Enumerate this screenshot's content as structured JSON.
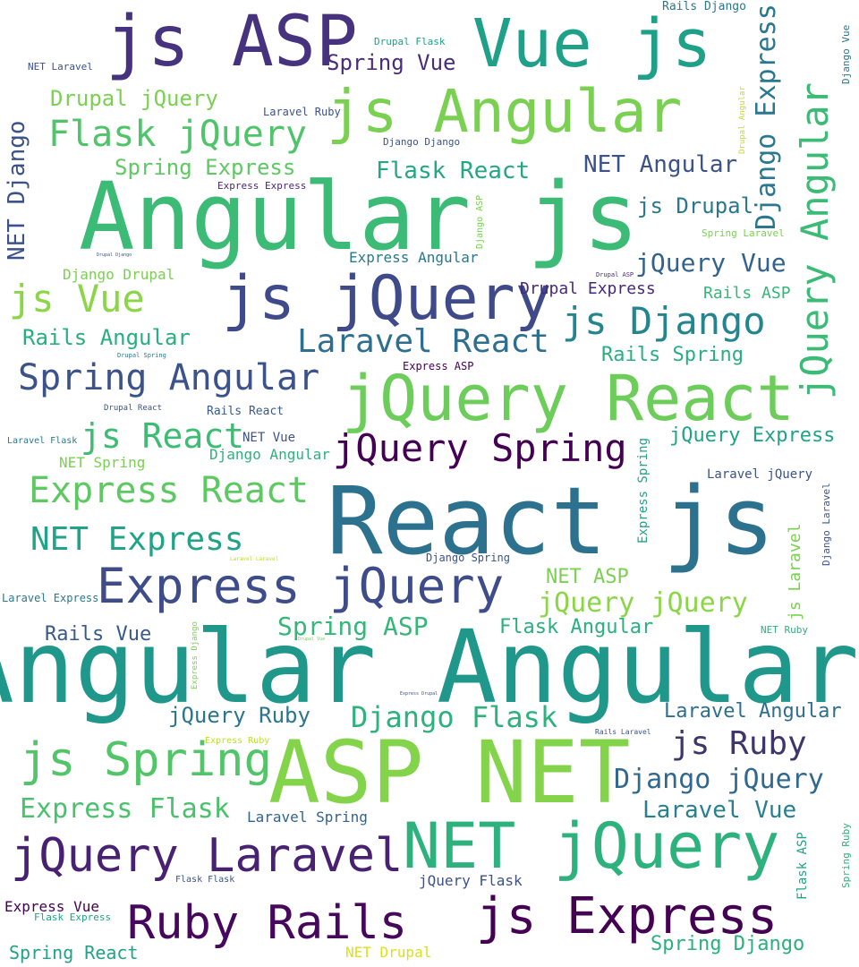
{
  "words": [
    {
      "text": "js ASP",
      "color": "#46327e",
      "size": "h",
      "vertical": false
    },
    {
      "text": "Vue js",
      "color": "#1fa088",
      "size": "h",
      "vertical": false
    },
    {
      "text": "js Angular",
      "color": "#7ad151",
      "size": "h",
      "vertical": false
    },
    {
      "text": "Angular js",
      "color": "#3bbb75",
      "size": "h",
      "vertical": false
    },
    {
      "text": "js jQuery",
      "color": "#3e4a89",
      "size": "h",
      "vertical": false
    },
    {
      "text": "jQuery React",
      "color": "#6ccd5a",
      "size": "h",
      "vertical": false
    },
    {
      "text": "React js",
      "color": "#2c728e",
      "size": "h",
      "vertical": false
    },
    {
      "text": "Express jQuery",
      "color": "#3e4c8a",
      "size": "h",
      "vertical": false
    },
    {
      "text": "Angular Angular",
      "color": "#1f988b",
      "size": "h",
      "vertical": false
    },
    {
      "text": "ASP NET",
      "color": "#84d44b",
      "size": "h",
      "vertical": false
    },
    {
      "text": "NET jQuery",
      "color": "#2db27d",
      "size": "h",
      "vertical": false
    },
    {
      "text": "jQuery Laravel",
      "color": "#482173",
      "size": "h",
      "vertical": false
    },
    {
      "text": "Ruby Rails",
      "color": "#46085c",
      "size": "h",
      "vertical": false
    },
    {
      "text": "js Express",
      "color": "#440154",
      "size": "h",
      "vertical": false
    },
    {
      "text": "js Spring",
      "color": "#52c569",
      "size": "h",
      "vertical": false
    },
    {
      "text": "jQuery Spring",
      "color": "#440154",
      "size": "h",
      "vertical": false
    },
    {
      "text": "jQuery Angular",
      "color": "#3bbb75",
      "size": "h",
      "vertical": true
    },
    {
      "text": "Spring Vue",
      "color": "#472d7b",
      "size": "m",
      "vertical": false
    },
    {
      "text": "Drupal jQuery",
      "color": "#7ad151",
      "size": "m",
      "vertical": false
    },
    {
      "text": "Flask jQuery",
      "color": "#50c46a",
      "size": "m",
      "vertical": false
    },
    {
      "text": "Spring Express",
      "color": "#5ec962",
      "size": "m",
      "vertical": false
    },
    {
      "text": "Flask React",
      "color": "#22a884",
      "size": "m",
      "vertical": false
    },
    {
      "text": "NET Angular",
      "color": "#3b528b",
      "size": "m",
      "vertical": false
    },
    {
      "text": "js Drupal",
      "color": "#2a788e",
      "size": "m",
      "vertical": false
    },
    {
      "text": "jQuery Vue",
      "color": "#33638d",
      "size": "m",
      "vertical": false
    },
    {
      "text": "js Vue",
      "color": "#8bd646",
      "size": "m",
      "vertical": false
    },
    {
      "text": "js Django",
      "color": "#25858e",
      "size": "m",
      "vertical": false
    },
    {
      "text": "Laravel React",
      "color": "#2e6e8e",
      "size": "m",
      "vertical": false
    },
    {
      "text": "Rails Angular",
      "color": "#29af7f",
      "size": "m",
      "vertical": false
    },
    {
      "text": "Spring Angular",
      "color": "#3b528b",
      "size": "m",
      "vertical": false
    },
    {
      "text": "js React",
      "color": "#3dbc74",
      "size": "m",
      "vertical": false
    },
    {
      "text": "Express React",
      "color": "#5ec962",
      "size": "m",
      "vertical": false
    },
    {
      "text": "NET Express",
      "color": "#20a386",
      "size": "m",
      "vertical": false
    },
    {
      "text": "jQuery jQuery",
      "color": "#8bd646",
      "size": "m",
      "vertical": false
    },
    {
      "text": "Spring ASP",
      "color": "#35b779",
      "size": "m",
      "vertical": false
    },
    {
      "text": "Django Flask",
      "color": "#2db27d",
      "size": "m",
      "vertical": false
    },
    {
      "text": "jQuery Ruby",
      "color": "#2a768e",
      "size": "m",
      "vertical": false
    },
    {
      "text": "js Ruby",
      "color": "#3e356b",
      "size": "m",
      "vertical": false
    },
    {
      "text": "Django jQuery",
      "color": "#31688e",
      "size": "m",
      "vertical": false
    },
    {
      "text": "Laravel Vue",
      "color": "#27808e",
      "size": "m",
      "vertical": false
    },
    {
      "text": "Express Flask",
      "color": "#4ac16d",
      "size": "m",
      "vertical": false
    },
    {
      "text": "Django Express",
      "color": "#2a788e",
      "size": "m",
      "vertical": true
    },
    {
      "text": "NET Django",
      "color": "#3b528b",
      "size": "m",
      "vertical": true
    },
    {
      "text": "Rails Vue",
      "color": "#38598c",
      "size": "s",
      "vertical": false
    },
    {
      "text": "Flask Angular",
      "color": "#2ab07f",
      "size": "s",
      "vertical": false
    },
    {
      "text": "NET ASP",
      "color": "#7ad151",
      "size": "s",
      "vertical": false
    },
    {
      "text": "Laravel Angular",
      "color": "#2e6e8e",
      "size": "s",
      "vertical": false
    },
    {
      "text": "jQuery Express",
      "color": "#20a386",
      "size": "s",
      "vertical": false
    },
    {
      "text": "Rails Spring",
      "color": "#29af7f",
      "size": "s",
      "vertical": false
    },
    {
      "text": "Rails ASP",
      "color": "#35b779",
      "size": "s",
      "vertical": false
    },
    {
      "text": "Drupal Express",
      "color": "#482878",
      "size": "s",
      "vertical": false
    },
    {
      "text": "Express Angular",
      "color": "#2a788e",
      "size": "s",
      "vertical": false
    },
    {
      "text": "Django Drupal",
      "color": "#7ad151",
      "size": "s",
      "vertical": false
    },
    {
      "text": "NET Spring",
      "color": "#7ad151",
      "size": "s",
      "vertical": false
    },
    {
      "text": "Django Angular",
      "color": "#2db27d",
      "size": "s",
      "vertical": false
    },
    {
      "text": "Laravel jQuery",
      "color": "#3b528b",
      "size": "s",
      "vertical": false
    },
    {
      "text": "Laravel Spring",
      "color": "#33638d",
      "size": "s",
      "vertical": false
    },
    {
      "text": "jQuery Flask",
      "color": "#3b528b",
      "size": "s",
      "vertical": false
    },
    {
      "text": "Spring React",
      "color": "#20a386",
      "size": "s",
      "vertical": false
    },
    {
      "text": "NET Drupal",
      "color": "#d8e219",
      "size": "s",
      "vertical": false
    },
    {
      "text": "Spring Django",
      "color": "#2ab07f",
      "size": "s",
      "vertical": false
    },
    {
      "text": "Express Vue",
      "color": "#440154",
      "size": "s",
      "vertical": false
    },
    {
      "text": "Laravel Ruby",
      "color": "#3b528b",
      "size": "xs",
      "vertical": false
    },
    {
      "text": "Drupal Flask",
      "color": "#1fa088",
      "size": "xs",
      "vertical": false
    },
    {
      "text": "Rails Django",
      "color": "#2a788e",
      "size": "xs",
      "vertical": false
    },
    {
      "text": "NET Laravel",
      "color": "#3b528b",
      "size": "xs",
      "vertical": false
    },
    {
      "text": "Django Django",
      "color": "#3b528b",
      "size": "xs",
      "vertical": false
    },
    {
      "text": "Express Express",
      "color": "#482878",
      "size": "xs",
      "vertical": false
    },
    {
      "text": "Spring Laravel",
      "color": "#7ad151",
      "size": "xs",
      "vertical": false
    },
    {
      "text": "Express ASP",
      "color": "#440154",
      "size": "xs",
      "vertical": false
    },
    {
      "text": "Rails React",
      "color": "#38598c",
      "size": "xs",
      "vertical": false
    },
    {
      "text": "NET Vue",
      "color": "#3b528b",
      "size": "xs",
      "vertical": false
    },
    {
      "text": "Laravel Flask",
      "color": "#2a788e",
      "size": "xs",
      "vertical": false
    },
    {
      "text": "Laravel Express",
      "color": "#2a788e",
      "size": "xs",
      "vertical": false
    },
    {
      "text": "Django Spring",
      "color": "#3b528b",
      "size": "xs",
      "vertical": false
    },
    {
      "text": "Express Ruby",
      "color": "#bddf26",
      "size": "xs",
      "vertical": false
    },
    {
      "text": "Flask Flask",
      "color": "#3b528b",
      "size": "xs",
      "vertical": false
    },
    {
      "text": "Flask Express",
      "color": "#20a386",
      "size": "xs",
      "vertical": false
    },
    {
      "text": "NET Ruby",
      "color": "#2db27d",
      "size": "xs",
      "vertical": false
    },
    {
      "text": "Drupal React",
      "color": "#3b528b",
      "size": "xxs",
      "vertical": false
    },
    {
      "text": "Drupal ASP",
      "color": "#482878",
      "size": "xxs",
      "vertical": false
    },
    {
      "text": "Rails Laravel",
      "color": "#3b528b",
      "size": "xxs",
      "vertical": false
    },
    {
      "text": "Drupal Spring",
      "color": "#2a788e",
      "size": "xxs",
      "vertical": false
    },
    {
      "text": "Django Vue",
      "color": "#2a788e",
      "size": "xs",
      "vertical": true
    },
    {
      "text": "Drupal Angular",
      "color": "#bddf26",
      "size": "xxs",
      "vertical": true
    },
    {
      "text": "Django ASP",
      "color": "#7ad151",
      "size": "xxs",
      "vertical": true
    },
    {
      "text": "Express Spring",
      "color": "#20a386",
      "size": "s",
      "vertical": true
    },
    {
      "text": "Django Laravel",
      "color": "#3b528b",
      "size": "xs",
      "vertical": true
    },
    {
      "text": "js Laravel",
      "color": "#7ad151",
      "size": "s",
      "vertical": true
    },
    {
      "text": "Express Django",
      "color": "#7ad151",
      "size": "xxs",
      "vertical": true
    },
    {
      "text": "Flask ASP",
      "color": "#20a386",
      "size": "s",
      "vertical": true
    },
    {
      "text": "Spring Ruby",
      "color": "#2db27d",
      "size": "xs",
      "vertical": true
    },
    {
      "text": "Drupal Django",
      "color": "#3b528b",
      "size": "xxs",
      "vertical": false
    },
    {
      "text": "Drupal Vue",
      "color": "#7ad151",
      "size": "xxs",
      "vertical": false
    },
    {
      "text": "Laravel Laravel",
      "color": "#bddf26",
      "size": "xxs",
      "vertical": false
    },
    {
      "text": "Express Drupal",
      "color": "#3b528b",
      "size": "xxs",
      "vertical": false
    }
  ]
}
